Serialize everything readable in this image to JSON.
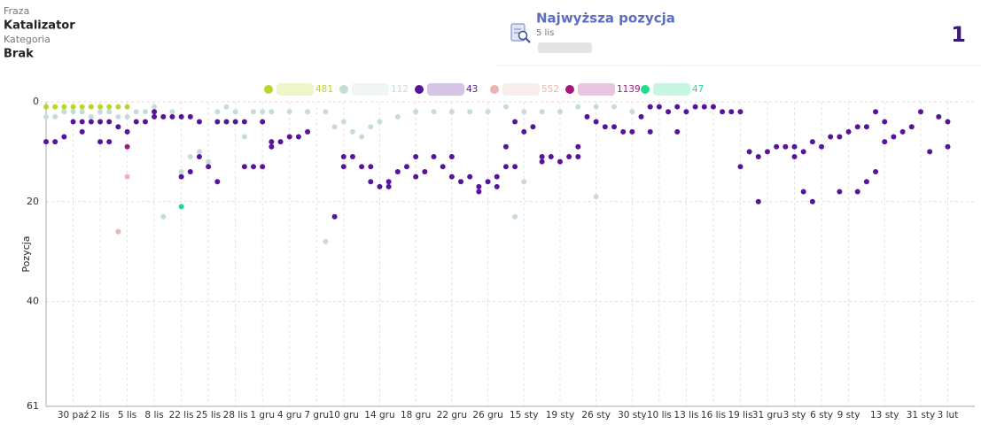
{
  "header": {
    "phrase_label": "Fraza",
    "phrase": "Katalizator",
    "category_label": "Kategoria",
    "category": "Brak"
  },
  "summary": {
    "title": "Najwyższa pozycja",
    "date": "5 lis",
    "value": "1"
  },
  "chart_data": {
    "type": "scatter",
    "y_label": "Pozycja",
    "y_inverted": true,
    "grid": true,
    "legend": "top",
    "xlim": [
      -3,
      100
    ],
    "ylim": [
      0,
      61
    ],
    "yticks": [
      0,
      20,
      40,
      61
    ],
    "xticks": [
      {
        "value": 0,
        "label": "30 paź"
      },
      {
        "value": 3,
        "label": "2 lis"
      },
      {
        "value": 6,
        "label": "5 lis"
      },
      {
        "value": 9,
        "label": "8 lis"
      },
      {
        "value": 12,
        "label": "22 lis"
      },
      {
        "value": 15,
        "label": "25 lis"
      },
      {
        "value": 18,
        "label": "28 lis"
      },
      {
        "value": 21,
        "label": "1 gru"
      },
      {
        "value": 24,
        "label": "4 gru"
      },
      {
        "value": 27,
        "label": "7 gru"
      },
      {
        "value": 30,
        "label": "10 gru"
      },
      {
        "value": 34,
        "label": "14 gru"
      },
      {
        "value": 38,
        "label": "18 gru"
      },
      {
        "value": 42,
        "label": "22 gru"
      },
      {
        "value": 46,
        "label": "26 gru"
      },
      {
        "value": 50,
        "label": "15 sty"
      },
      {
        "value": 54,
        "label": "19 sty"
      },
      {
        "value": 58,
        "label": "26 sty"
      },
      {
        "value": 62,
        "label": "30 sty"
      },
      {
        "value": 65,
        "label": "10 lis"
      },
      {
        "value": 68,
        "label": "13 lis"
      },
      {
        "value": 71,
        "label": "16 lis"
      },
      {
        "value": 74,
        "label": "19 lis"
      },
      {
        "value": 77,
        "label": "31 gru"
      },
      {
        "value": 80,
        "label": "3 sty"
      },
      {
        "value": 83,
        "label": "6 sty"
      },
      {
        "value": 86,
        "label": "9 sty"
      },
      {
        "value": 90,
        "label": "13 sty"
      },
      {
        "value": 94,
        "label": "31 sty"
      },
      {
        "value": 97,
        "label": "3 lut"
      }
    ],
    "series": [
      {
        "name": "481",
        "color": "#b9d62e",
        "x": [
          -3,
          -2,
          -1,
          0,
          1,
          2,
          3,
          4,
          5,
          6
        ],
        "values": [
          1,
          1,
          1,
          1,
          1,
          1,
          1,
          1,
          1,
          1
        ]
      },
      {
        "name": "112",
        "color": "#c6dcd9",
        "x": [
          -3,
          -2,
          -1,
          0,
          1,
          2,
          3,
          4,
          5,
          6,
          7,
          8,
          9,
          10,
          11,
          12,
          13,
          14,
          15,
          16,
          17,
          18,
          19,
          20,
          21,
          22,
          24,
          26,
          28,
          28,
          29,
          30,
          31,
          32,
          33,
          34,
          36,
          38,
          40,
          42,
          44,
          46,
          48,
          49,
          50,
          50,
          52,
          54,
          56,
          58,
          58,
          60,
          62,
          64
        ],
        "values": [
          3,
          3,
          2,
          2,
          2,
          3,
          2,
          2,
          3,
          3,
          2,
          2,
          1,
          23,
          2,
          14,
          11,
          10,
          12,
          2,
          1,
          2,
          7,
          2,
          2,
          2,
          2,
          2,
          28,
          2,
          5,
          4,
          6,
          7,
          5,
          4,
          3,
          2,
          2,
          2,
          2,
          2,
          1,
          23,
          16,
          2,
          2,
          2,
          1,
          19,
          1,
          1,
          2,
          1
        ]
      },
      {
        "name": "43",
        "color": "#57139c",
        "x": [
          -3,
          -2,
          -1,
          0,
          1,
          1,
          2,
          3,
          3,
          4,
          4,
          5,
          6,
          7,
          8,
          9,
          9,
          10,
          11,
          12,
          12,
          13,
          13,
          14,
          14,
          15,
          16,
          16,
          17,
          18,
          19,
          19,
          20,
          21,
          21,
          22,
          22,
          23,
          24,
          25,
          26,
          29,
          30,
          30,
          31,
          32,
          33,
          33,
          34,
          35,
          35,
          36,
          37,
          38,
          38,
          39,
          40,
          41,
          42,
          42,
          43,
          44,
          45,
          45,
          46,
          47,
          47,
          48,
          48,
          49,
          49,
          50,
          51,
          52,
          52,
          53,
          54,
          55,
          56,
          56,
          57,
          58,
          59,
          60,
          61,
          62,
          63,
          64,
          64,
          65,
          66,
          67,
          67,
          68,
          69,
          70,
          71,
          72,
          73,
          74,
          74,
          75,
          76,
          76,
          77,
          78,
          79,
          80,
          80,
          81,
          81,
          82,
          82,
          83,
          84,
          85,
          85,
          86,
          87,
          87,
          88,
          88,
          89,
          89,
          90,
          90,
          91,
          92,
          93,
          94,
          95,
          96,
          97,
          97
        ],
        "values": [
          8,
          8,
          7,
          4,
          6,
          4,
          4,
          8,
          4,
          8,
          4,
          5,
          6,
          4,
          4,
          3,
          2,
          3,
          3,
          3,
          15,
          3,
          14,
          4,
          11,
          13,
          16,
          4,
          4,
          4,
          4,
          13,
          13,
          13,
          4,
          9,
          8,
          8,
          7,
          7,
          6,
          23,
          11,
          13,
          11,
          13,
          13,
          16,
          17,
          17,
          16,
          14,
          13,
          11,
          15,
          14,
          11,
          13,
          15,
          11,
          16,
          15,
          17,
          18,
          16,
          17,
          15,
          9,
          13,
          13,
          4,
          6,
          5,
          11,
          12,
          11,
          12,
          11,
          9,
          11,
          3,
          4,
          5,
          5,
          6,
          6,
          3,
          1,
          6,
          1,
          2,
          1,
          6,
          2,
          1,
          1,
          1,
          2,
          2,
          13,
          2,
          10,
          20,
          11,
          10,
          9,
          9,
          9,
          11,
          18,
          10,
          20,
          8,
          9,
          7,
          18,
          7,
          6,
          18,
          5,
          16,
          5,
          14,
          2,
          8,
          4,
          7,
          6,
          5,
          2,
          10,
          3,
          9,
          4
        ]
      },
      {
        "name": "552",
        "color": "#e9b6b2",
        "x": [
          5,
          6
        ],
        "values": [
          26,
          15
        ]
      },
      {
        "name": "1139",
        "color": "#a3177c",
        "x": [
          6
        ],
        "values": [
          9
        ]
      },
      {
        "name": "47",
        "color": "#1fdc8c",
        "x": [
          12
        ],
        "values": [
          21
        ]
      }
    ]
  }
}
